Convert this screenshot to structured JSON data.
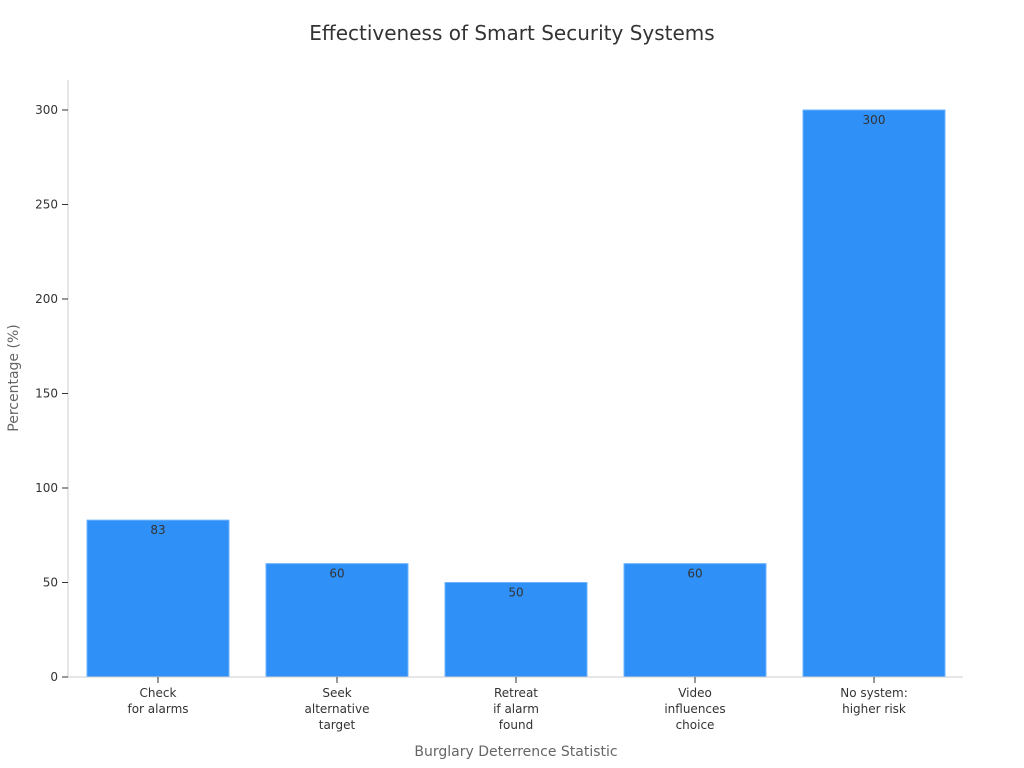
{
  "chart_data": {
    "type": "bar",
    "title": "Effectiveness of Smart Security Systems",
    "xlabel": "Burglary Deterrence Statistic",
    "ylabel": "Percentage (%)",
    "categories": [
      [
        "Check",
        "for alarms"
      ],
      [
        "Seek",
        "alternative",
        "target"
      ],
      [
        "Retreat",
        "if alarm",
        "found"
      ],
      [
        "Video",
        "influences",
        "choice"
      ],
      [
        "No system:",
        "higher risk"
      ]
    ],
    "values": [
      83,
      60,
      50,
      60,
      300
    ],
    "data_labels": [
      "83",
      "60",
      "50",
      "60",
      "300"
    ],
    "ylim": [
      0,
      315
    ],
    "yticks": [
      0,
      50,
      100,
      150,
      200,
      250,
      300
    ],
    "grid": false,
    "bar_color": "#2f90f8",
    "bar_edge_color": "#6fb4ff"
  }
}
